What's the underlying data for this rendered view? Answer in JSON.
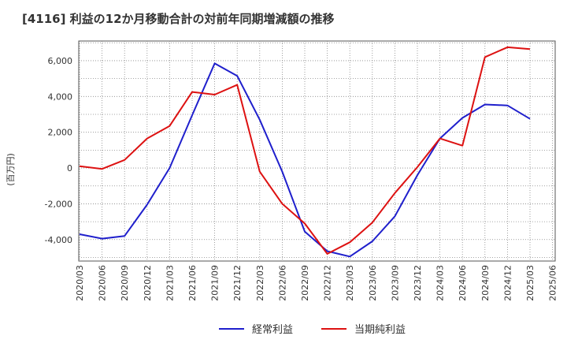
{
  "chart_data": {
    "type": "line",
    "title": "[4116]  利益の12か月移動合計の対前年同期増減額の推移",
    "ylabel": "(百万円)",
    "xlabel": "",
    "ylim": [
      -5200,
      7100
    ],
    "yticks": [
      -4000,
      -2000,
      0,
      2000,
      4000,
      6000
    ],
    "ytick_labels": [
      "-4,000",
      "-2,000",
      "0",
      "2,000",
      "4,000",
      "6,000"
    ],
    "categories": [
      "2020/03",
      "2020/06",
      "2020/09",
      "2020/12",
      "2021/03",
      "2021/06",
      "2021/09",
      "2021/12",
      "2022/03",
      "2022/06",
      "2022/09",
      "2022/12",
      "2023/03",
      "2023/06",
      "2023/09",
      "2023/12",
      "2024/03",
      "2024/06",
      "2024/09",
      "2024/12",
      "2025/03",
      "2025/06"
    ],
    "grid": true,
    "series": [
      {
        "name": "経常利益",
        "color": "#1f1fcc",
        "values": [
          -3700,
          -3950,
          -3800,
          -2050,
          0,
          2950,
          5850,
          5150,
          2700,
          -200,
          -3550,
          -4650,
          -4950,
          -4100,
          -2700,
          -400,
          1650,
          2800,
          3550,
          3500,
          2750,
          null
        ]
      },
      {
        "name": "当期純利益",
        "color": "#dd1111",
        "values": [
          100,
          -50,
          450,
          1650,
          2350,
          4250,
          4100,
          4650,
          -200,
          -2000,
          -3100,
          -4800,
          -4150,
          -3050,
          -1400,
          50,
          1650,
          1250,
          6200,
          6750,
          6650,
          null
        ]
      }
    ]
  }
}
